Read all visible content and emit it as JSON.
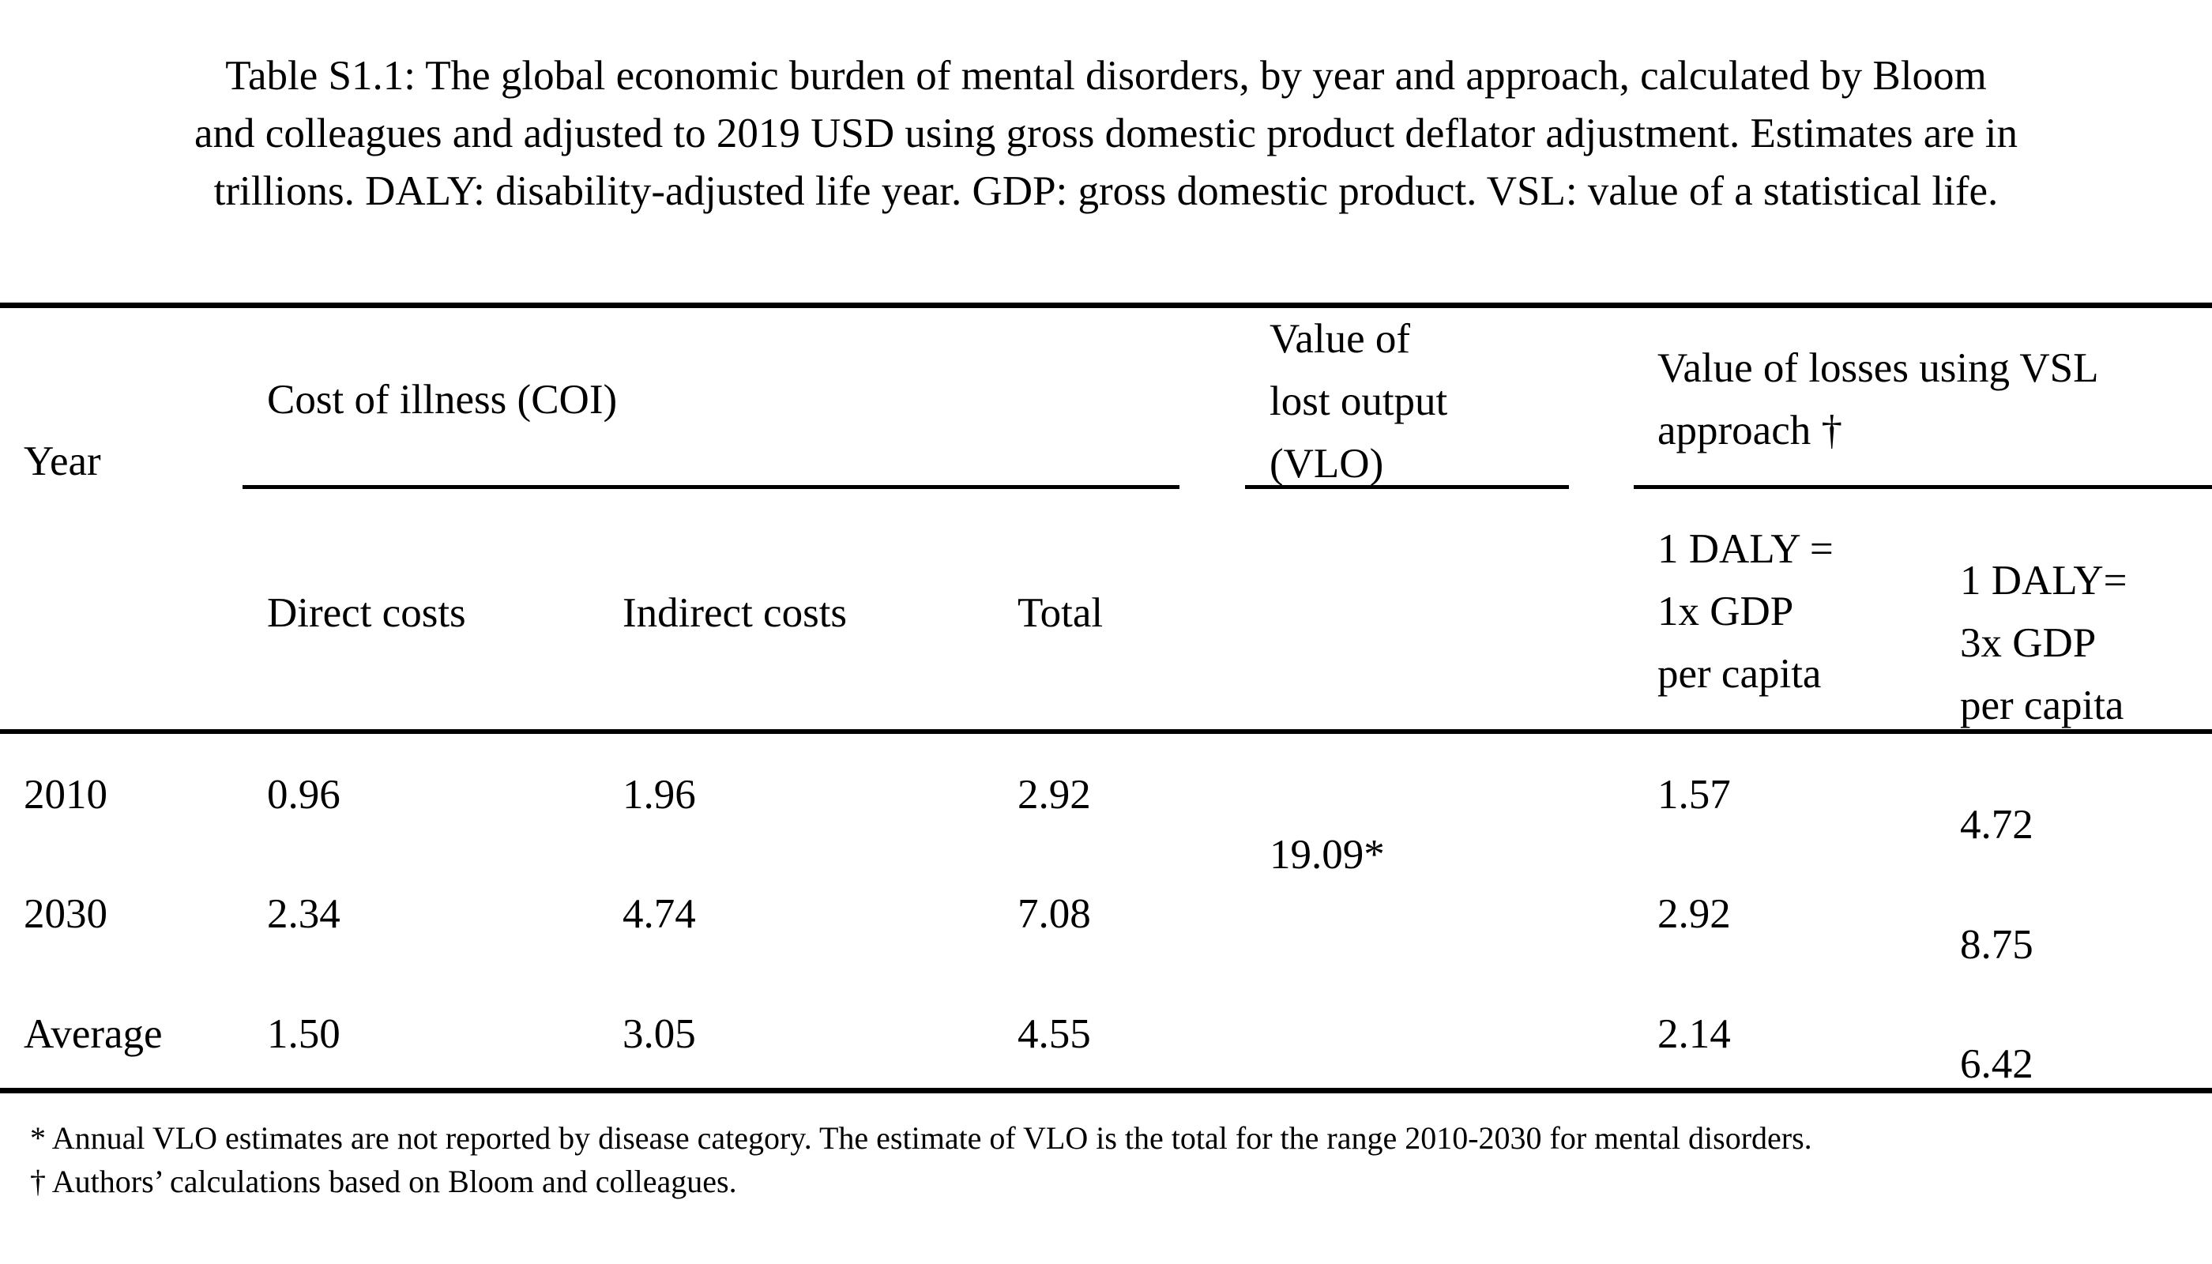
{
  "caption": {
    "lines": [
      "Table S1.1: The global economic burden of mental disorders, by year and approach, calculated by Bloom",
      "and colleagues and adjusted to 2019 USD using gross domestic product deflator adjustment. Estimates are in",
      "trillions. DALY: disability-adjusted life year. GDP: gross domestic product. VSL: value of a statistical life."
    ]
  },
  "table": {
    "header": {
      "year": "Year",
      "coi_group": "Cost of illness (COI)",
      "vlo_lines": [
        "Value of",
        "lost output",
        "(VLO)"
      ],
      "vsl_lines": [
        "Value of losses using VSL",
        "approach †"
      ],
      "direct": "Direct costs",
      "indirect": "Indirect costs",
      "total": "Total",
      "daly1_lines": [
        "1 DALY =",
        "1x GDP",
        "per capita"
      ],
      "daly3_lines": [
        "1 DALY=",
        "3x GDP",
        "per capita"
      ]
    },
    "vlo_value": "19.09*",
    "rows": [
      {
        "year": "2010",
        "direct": "0.96",
        "indirect": "1.96",
        "total": "2.92",
        "daly1": "1.57",
        "daly3": "4.72"
      },
      {
        "year": "2030",
        "direct": "2.34",
        "indirect": "4.74",
        "total": "7.08",
        "daly1": "2.92",
        "daly3": "8.75"
      },
      {
        "year": "Average",
        "direct": "1.50",
        "indirect": "3.05",
        "total": "4.55",
        "daly1": "2.14",
        "daly3": "6.42"
      }
    ]
  },
  "footnotes": [
    "* Annual VLO estimates are not reported by disease category. The estimate of VLO is the total for the range 2010-2030 for mental disorders.",
    "† Authors’ calculations based on Bloom and colleagues."
  ]
}
